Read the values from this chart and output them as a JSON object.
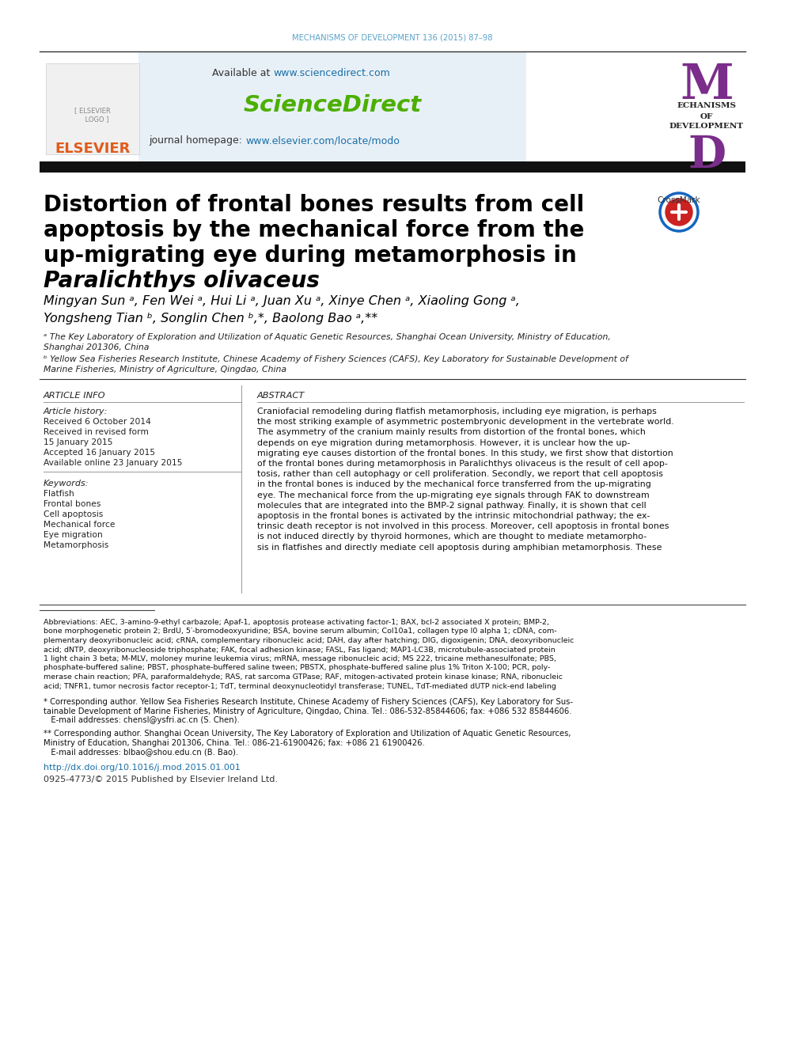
{
  "journal_header": "MECHANISMS OF DEVELOPMENT 136 (2015) 87–98",
  "available_at": "Available at ",
  "sciencedirect_url": "www.sciencedirect.com",
  "sciencedirect_text": "ScienceDirect",
  "journal_homepage_text": "journal homepage: ",
  "journal_homepage_url": "www.elsevier.com/locate/modo",
  "elsevier_text": "ELSEVIER",
  "title_line1": "Distortion of frontal bones results from cell",
  "title_line2": "apoptosis by the mechanical force from the",
  "title_line3": "up-migrating eye during metamorphosis in",
  "title_line4_italic": "Paralichthys olivaceus",
  "author_line1": "Mingyan Sun ᵃ, Fen Wei ᵃ, Hui Li ᵃ, Juan Xu ᵃ, Xinye Chen ᵃ, Xiaoling Gong ᵃ,",
  "author_line2": "Yongsheng Tian ᵇ, Songlin Chen ᵇ,*, Baolong Bao ᵃ,**",
  "affil_a": "ᵃ The Key Laboratory of Exploration and Utilization of Aquatic Genetic Resources, Shanghai Ocean University, Ministry of Education,",
  "affil_a2": "Shanghai 201306, China",
  "affil_b": "ᵇ Yellow Sea Fisheries Research Institute, Chinese Academy of Fishery Sciences (CAFS), Key Laboratory for Sustainable Development of",
  "affil_b2": "Marine Fisheries, Ministry of Agriculture, Qingdao, China",
  "article_info_title": "ARTICLE INFO",
  "article_history_title": "Article history:",
  "received1": "Received 6 October 2014",
  "received2": "Received in revised form",
  "received2b": "15 January 2015",
  "accepted": "Accepted 16 January 2015",
  "available_online": "Available online 23 January 2015",
  "keywords_title": "Keywords:",
  "keywords": [
    "Flatfish",
    "Frontal bones",
    "Cell apoptosis",
    "Mechanical force",
    "Eye migration",
    "Metamorphosis"
  ],
  "abstract_title": "ABSTRACT",
  "abstract_lines": [
    "Craniofacial remodeling during flatfish metamorphosis, including eye migration, is perhaps",
    "the most striking example of asymmetric postembryonic development in the vertebrate world.",
    "The asymmetry of the cranium mainly results from distortion of the frontal bones, which",
    "depends on eye migration during metamorphosis. However, it is unclear how the up-",
    "migrating eye causes distortion of the frontal bones. In this study, we first show that distortion",
    "of the frontal bones during metamorphosis in Paralichthys olivaceus is the result of cell apop-",
    "tosis, rather than cell autophagy or cell proliferation. Secondly, we report that cell apoptosis",
    "in the frontal bones is induced by the mechanical force transferred from the up-migrating",
    "eye. The mechanical force from the up-migrating eye signals through FAK to downstream",
    "molecules that are integrated into the BMP-2 signal pathway. Finally, it is shown that cell",
    "apoptosis in the frontal bones is activated by the intrinsic mitochondrial pathway; the ex-",
    "trinsic death receptor is not involved in this process. Moreover, cell apoptosis in frontal bones",
    "is not induced directly by thyroid hormones, which are thought to mediate metamorpho-",
    "sis in flatfishes and directly mediate cell apoptosis during amphibian metamorphosis. These"
  ],
  "abbrev_lines": [
    "Abbreviations: AEC, 3-amino-9-ethyl carbazole; Apaf-1, apoptosis protease activating factor-1; BAX, bcl-2 associated X protein; BMP-2,",
    "bone morphogenetic protein 2; BrdU, 5′-bromodeoxyuridine; BSA, bovine serum albumin; Col10a1, collagen type I0 alpha 1; cDNA, com-",
    "plementary deoxyribonucleic acid; cRNA, complementary ribonucleic acid; DAH, day after hatching; DIG, digoxigenin; DNA, deoxyribonucleic",
    "acid; dNTP, deoxyribonucleoside triphosphate; FAK, focal adhesion kinase; FASL, Fas ligand; MAP1-LC3B, microtubule-associated protein",
    "1 light chain 3 beta; M-MLV, moloney murine leukemia virus; mRNA, message ribonucleic acid; MS 222, tricaine methanesulfonate; PBS,",
    "phosphate-buffered saline; PBST, phosphate-buffered saline tween; PBSTX, phosphate-buffered saline plus 1% Triton X-100; PCR, poly-",
    "merase chain reaction; PFA, paraformaldehyde; RAS, rat sarcoma GTPase; RAF, mitogen-activated protein kinase kinase; RNA, ribonucleic",
    "acid; TNFR1, tumor necrosis factor receptor-1; TdT, terminal deoxynucleotidyl transferase; TUNEL, TdT-mediated dUTP nick-end labeling"
  ],
  "footnote1_lines": [
    "* Corresponding author. Yellow Sea Fisheries Research Institute, Chinese Academy of Fishery Sciences (CAFS), Key Laboratory for Sus-",
    "tainable Development of Marine Fisheries, Ministry of Agriculture, Qingdao, China. Tel.: 086-532-85844606; fax: +086 532 85844606.",
    "   E-mail addresses: chensl@ysfri.ac.cn (S. Chen)."
  ],
  "footnote2_lines": [
    "** Corresponding author. Shanghai Ocean University, The Key Laboratory of Exploration and Utilization of Aquatic Genetic Resources,",
    "Ministry of Education, Shanghai 201306, China. Tel.: 086-21-61900426; fax: +086 21 61900426.",
    "   E-mail addresses: blbao@shou.edu.cn (B. Bao)."
  ],
  "doi_text": "http://dx.doi.org/10.1016/j.mod.2015.01.001",
  "copyright_text": "0925-4773/© 2015 Published by Elsevier Ireland Ltd.",
  "header_color": "#5ba3c9",
  "elsevier_color": "#e05c1a",
  "sciencedirect_color": "#4caf00",
  "url_color": "#1a6fa8",
  "mechanisms_color": "#7b2d8b",
  "bg_header": "#e8f0f7",
  "black": "#000000",
  "white": "#ffffff",
  "dark_gray": "#222222",
  "mid_gray": "#555555",
  "light_gray": "#888888"
}
